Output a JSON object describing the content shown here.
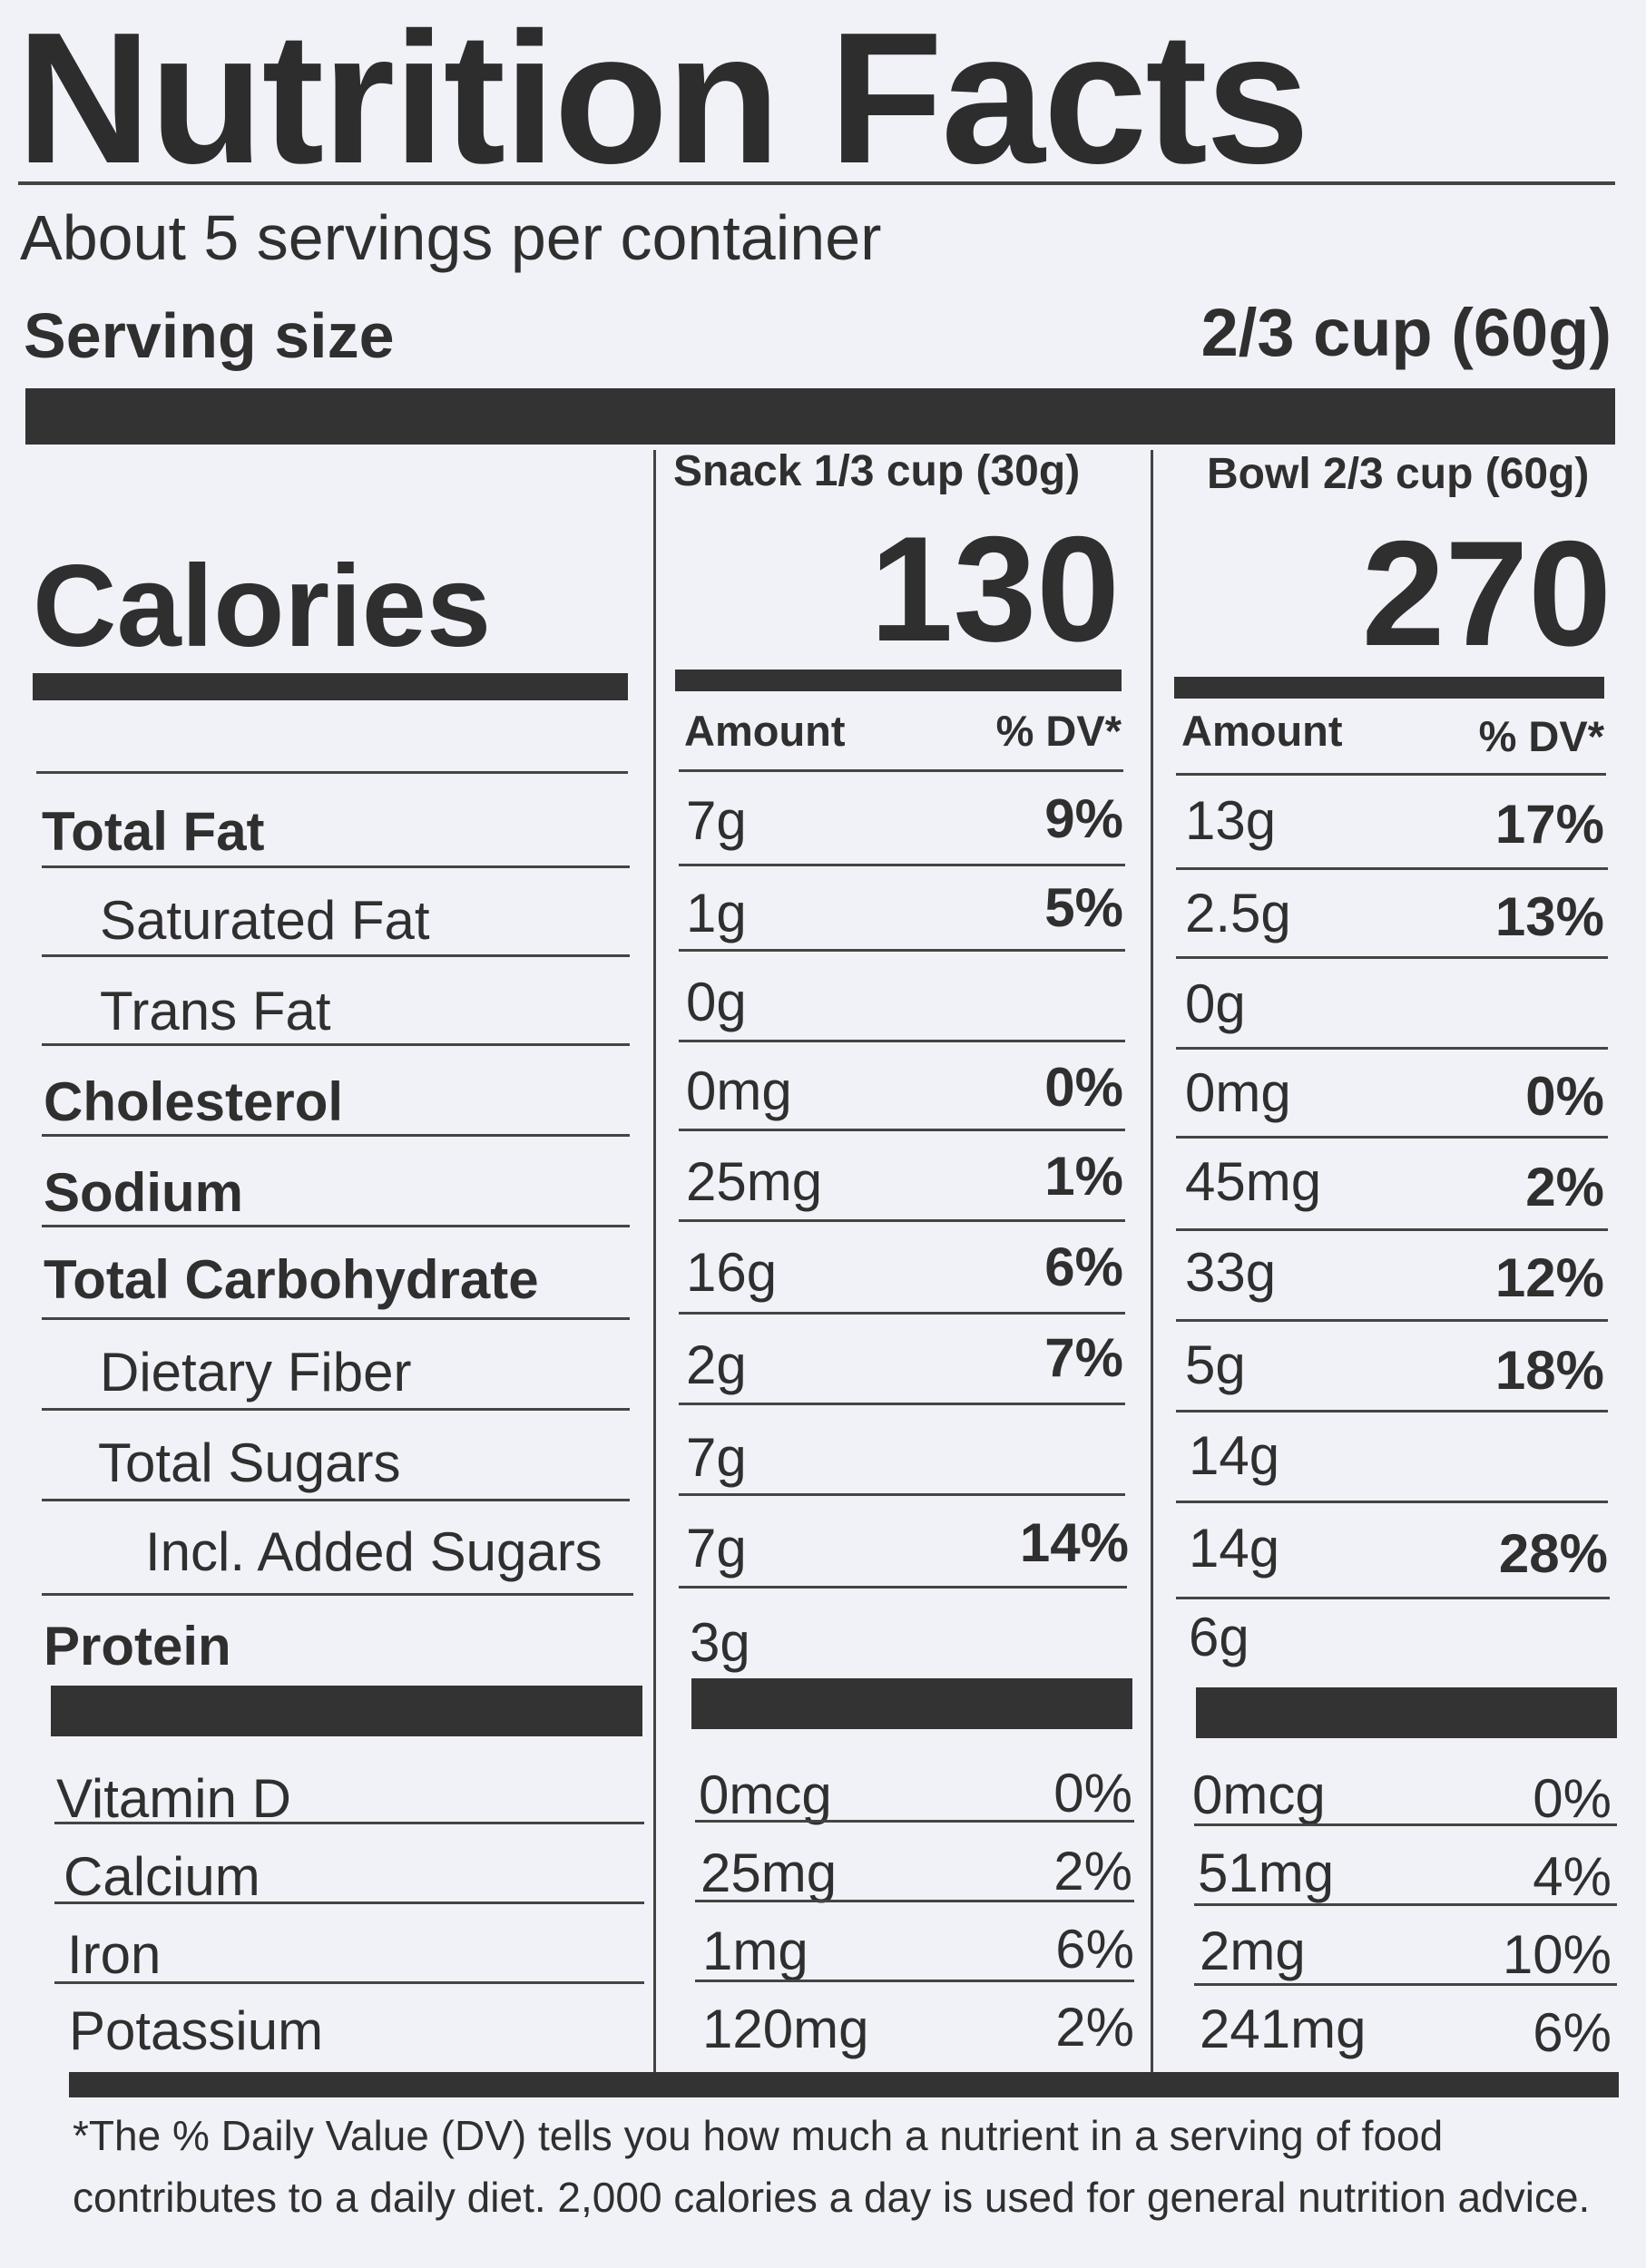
{
  "title": "Nutrition Facts",
  "servings_per_container": "About 5 servings per container",
  "serving_size": {
    "label": "Serving size",
    "value": "2/3 cup (60g)"
  },
  "calories_label": "Calories",
  "columns": [
    {
      "header": "Snack 1/3 cup (30g)",
      "calories": "130",
      "amount_label": "Amount",
      "dv_label": "% DV*"
    },
    {
      "header": "Bowl 2/3 cup (60g)",
      "calories": "270",
      "amount_label": "Amount",
      "dv_label": "% DV*"
    }
  ],
  "nutrients": [
    {
      "name": "Total Fat",
      "snack_amount": "7g",
      "snack_dv": "9%",
      "bowl_amount": "13g",
      "bowl_dv": "17%"
    },
    {
      "name": "Saturated Fat",
      "snack_amount": "1g",
      "snack_dv": "5%",
      "bowl_amount": "2.5g",
      "bowl_dv": "13%"
    },
    {
      "name": "Trans Fat",
      "snack_amount": "0g",
      "snack_dv": "",
      "bowl_amount": "0g",
      "bowl_dv": ""
    },
    {
      "name": "Cholesterol",
      "snack_amount": "0mg",
      "snack_dv": "0%",
      "bowl_amount": "0mg",
      "bowl_dv": "0%"
    },
    {
      "name": "Sodium",
      "snack_amount": "25mg",
      "snack_dv": "1%",
      "bowl_amount": "45mg",
      "bowl_dv": "2%"
    },
    {
      "name": "Total Carbohydrate",
      "snack_amount": "16g",
      "snack_dv": "6%",
      "bowl_amount": "33g",
      "bowl_dv": "12%"
    },
    {
      "name": "Dietary Fiber",
      "snack_amount": "2g",
      "snack_dv": "7%",
      "bowl_amount": "5g",
      "bowl_dv": "18%"
    },
    {
      "name": "Total Sugars",
      "snack_amount": "7g",
      "snack_dv": "",
      "bowl_amount": "14g",
      "bowl_dv": ""
    },
    {
      "name": "Incl. Added Sugars",
      "snack_amount": "7g",
      "snack_dv": "14%",
      "bowl_amount": "14g",
      "bowl_dv": "28%"
    },
    {
      "name": "Protein",
      "snack_amount": "3g",
      "snack_dv": "",
      "bowl_amount": "6g",
      "bowl_dv": ""
    }
  ],
  "vitamins": [
    {
      "name": "Vitamin D",
      "snack_amount": "0mcg",
      "snack_dv": "0%",
      "bowl_amount": "0mcg",
      "bowl_dv": "0%"
    },
    {
      "name": "Calcium",
      "snack_amount": "25mg",
      "snack_dv": "2%",
      "bowl_amount": "51mg",
      "bowl_dv": "4%"
    },
    {
      "name": "Iron",
      "snack_amount": "1mg",
      "snack_dv": "6%",
      "bowl_amount": "2mg",
      "bowl_dv": "10%"
    },
    {
      "name": "Potassium",
      "snack_amount": "120mg",
      "snack_dv": "2%",
      "bowl_amount": "241mg",
      "bowl_dv": "6%"
    }
  ],
  "footnote": "*The % Daily Value (DV) tells you how much a nutrient in a serving of food contributes to a daily diet. 2,000 calories a day is used for general nutrition advice."
}
